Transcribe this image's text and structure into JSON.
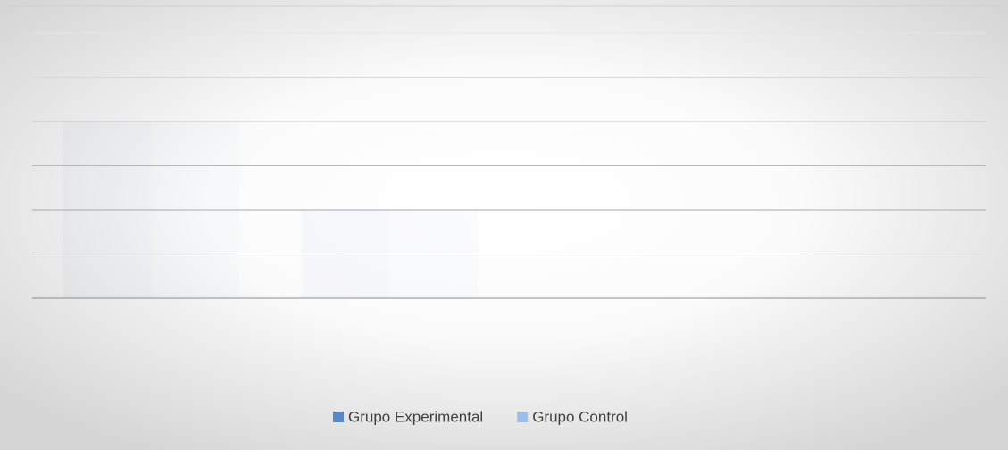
{
  "chart_data": {
    "type": "bar",
    "categories": [
      null,
      null,
      null,
      null
    ],
    "series": [
      {
        "name": "Grupo Experimental",
        "color": "#5b88c4",
        "values": [
          4,
          2,
          0,
          0
        ]
      },
      {
        "name": "Grupo Control",
        "color": "#9dbfe6",
        "values": [
          4,
          2,
          0,
          0
        ]
      }
    ],
    "ylim": [
      0,
      6
    ],
    "yticks": [
      0,
      1,
      2,
      3,
      4,
      5,
      6
    ],
    "grid": true,
    "legend": "bottom"
  }
}
